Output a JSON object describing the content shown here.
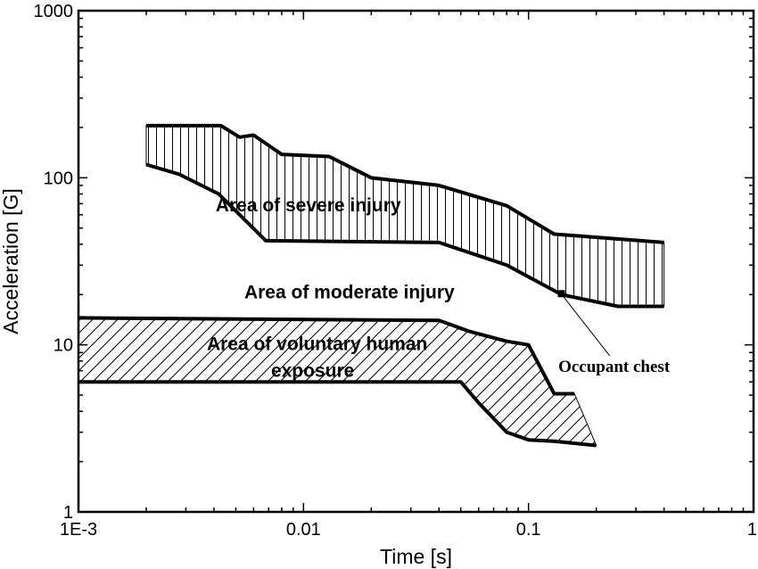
{
  "chart_data": {
    "type": "area",
    "x_scale": "log",
    "y_scale": "log",
    "xlabel": "Time  [s]",
    "ylabel": "Acceleration [G]",
    "xlim": [
      0.001,
      1
    ],
    "ylim": [
      1,
      1000
    ],
    "x_ticks": [
      {
        "value": 0.001,
        "label": "1E-3"
      },
      {
        "value": 0.01,
        "label": "0.01"
      },
      {
        "value": 0.1,
        "label": "0.1"
      },
      {
        "value": 1,
        "label": "1"
      }
    ],
    "y_ticks": [
      {
        "value": 1,
        "label": "1"
      },
      {
        "value": 10,
        "label": "10"
      },
      {
        "value": 100,
        "label": "100"
      },
      {
        "value": 1000,
        "label": "1000"
      }
    ],
    "grid": false,
    "regions": [
      {
        "label": "Area of severe injury",
        "hatch": "vertical",
        "upper": [
          [
            0.002,
            205
          ],
          [
            0.0043,
            205
          ],
          [
            0.0052,
            175
          ],
          [
            0.006,
            180
          ],
          [
            0.008,
            138
          ],
          [
            0.013,
            134
          ],
          [
            0.02,
            100
          ],
          [
            0.04,
            90
          ],
          [
            0.08,
            68
          ],
          [
            0.13,
            46
          ],
          [
            0.4,
            41
          ]
        ],
        "lower": [
          [
            0.002,
            120
          ],
          [
            0.0028,
            105
          ],
          [
            0.0042,
            80
          ],
          [
            0.0068,
            42
          ],
          [
            0.04,
            41
          ],
          [
            0.08,
            30
          ],
          [
            0.14,
            20
          ],
          [
            0.25,
            17
          ],
          [
            0.4,
            17
          ]
        ]
      },
      {
        "label": "Area of  voluntary human\nexposure",
        "hatch": "diagonal",
        "upper": [
          [
            0.001,
            14.5
          ],
          [
            0.04,
            14
          ],
          [
            0.055,
            12
          ],
          [
            0.08,
            10.5
          ],
          [
            0.1,
            10
          ],
          [
            0.13,
            5.1
          ],
          [
            0.16,
            5.1
          ]
        ],
        "lower": [
          [
            0.001,
            6
          ],
          [
            0.05,
            6
          ],
          [
            0.06,
            4.5
          ],
          [
            0.08,
            3
          ],
          [
            0.1,
            2.7
          ],
          [
            0.13,
            2.65
          ],
          [
            0.2,
            2.5
          ]
        ]
      }
    ],
    "annotations": [
      {
        "text": "Area of moderate injury",
        "x": 0.016,
        "y": 19
      },
      {
        "text": "Occupant chest",
        "x": 0.14,
        "y": 20,
        "label_x": 0.24,
        "label_y": 6.9
      }
    ]
  }
}
